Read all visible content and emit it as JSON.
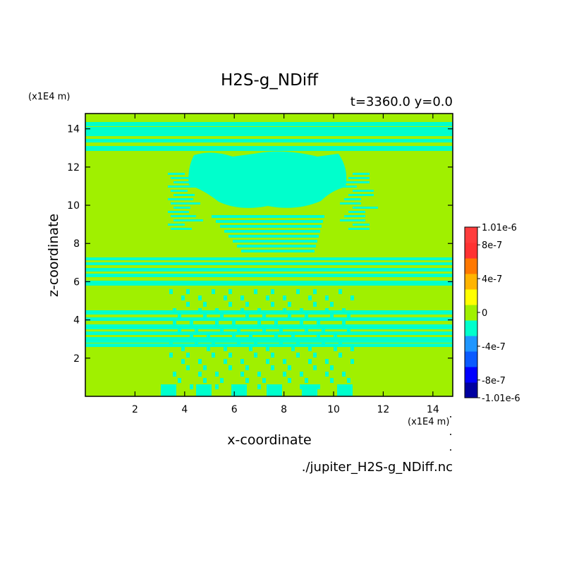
{
  "chart_data": {
    "type": "heatmap",
    "title": "H2S-g_NDiff",
    "subtitle": "t=3360.0 y=0.0",
    "xlabel": "x-coordinate",
    "ylabel": "z-coordinate",
    "x_unit": "(x1E4 m)",
    "z_unit": "(x1E4 m)",
    "xlim": [
      0,
      14.8
    ],
    "ylim": [
      0,
      14.8
    ],
    "x_ticks": [
      "2",
      "4",
      "6",
      "8",
      "10",
      "12",
      "14"
    ],
    "x_tick_values": [
      2,
      4,
      6,
      8,
      10,
      12,
      14
    ],
    "y_ticks": [
      "2",
      "4",
      "6",
      "8",
      "10",
      "12",
      "14"
    ],
    "y_tick_values": [
      2,
      4,
      6,
      8,
      10,
      12,
      14
    ],
    "dominant_value_range": [
      0,
      1e-07
    ],
    "secondary_value_range": [
      -2e-07,
      0
    ],
    "colorbar": {
      "levels": [
        -1.01e-06,
        -8e-07,
        -6e-07,
        -4e-07,
        -2e-07,
        0,
        2e-07,
        4e-07,
        6e-07,
        8e-07,
        1.01e-06
      ],
      "colors": [
        "#0000a0",
        "#0000ff",
        "#0a5aff",
        "#1e96ff",
        "#00ffcc",
        "#a0f000",
        "#ffff00",
        "#ffb400",
        "#ff7800",
        "#ff3232",
        "#ff3c3c"
      ],
      "labels": [
        {
          "text": "1.01e-6",
          "value": 1.01e-06
        },
        {
          "text": "8e-7",
          "value": 8e-07
        },
        {
          "text": "4e-7",
          "value": 4e-07
        },
        {
          "text": "0",
          "value": 0
        },
        {
          "text": "-4e-7",
          "value": -4e-07
        },
        {
          "text": "-8e-7",
          "value": -8e-07
        },
        {
          "text": "-1.01e-6",
          "value": -1.01e-06
        }
      ]
    },
    "source_file": "./jupiter_H2S-g_NDiff.nc"
  }
}
